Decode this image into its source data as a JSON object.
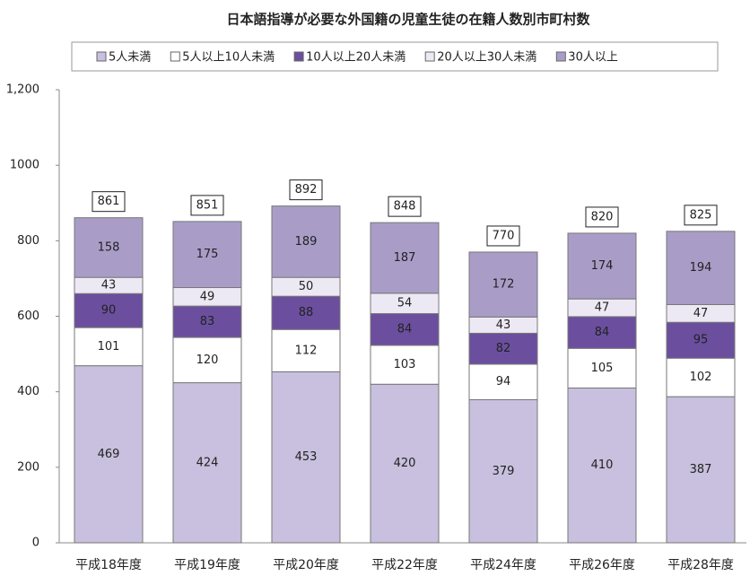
{
  "chart_data": {
    "type": "stacked_bar",
    "title": "日本語指導が必要な外国籍の児童生徒の在籍人数別市町村数",
    "categories": [
      "平成18年度",
      "平成19年度",
      "平成20年度",
      "平成22年度",
      "平成24年度",
      "平成26年度",
      "平成28年度"
    ],
    "series": [
      {
        "name": "5人未満",
        "color": "#c8c0de",
        "values": [
          469,
          424,
          453,
          420,
          379,
          410,
          387
        ]
      },
      {
        "name": "5人以上10人未満",
        "color": "#ffffff",
        "values": [
          101,
          120,
          112,
          103,
          94,
          105,
          102
        ]
      },
      {
        "name": "10人以上20人未満",
        "color": "#6b4f9e",
        "values": [
          90,
          83,
          88,
          84,
          82,
          84,
          95
        ]
      },
      {
        "name": "20人以上30人未満",
        "color": "#ede9f4",
        "values": [
          43,
          49,
          50,
          54,
          43,
          47,
          47
        ]
      },
      {
        "name": "30人以上",
        "color": "#a99dc8",
        "values": [
          158,
          175,
          189,
          187,
          172,
          174,
          194
        ]
      }
    ],
    "totals": [
      861,
      851,
      892,
      848,
      770,
      820,
      825
    ],
    "ylim": [
      0,
      1200
    ],
    "yticks": [
      0,
      200,
      400,
      600,
      800,
      1000,
      {
        "value": 1200,
        "label": "1,200"
      }
    ],
    "legend": "top",
    "grid": false
  }
}
